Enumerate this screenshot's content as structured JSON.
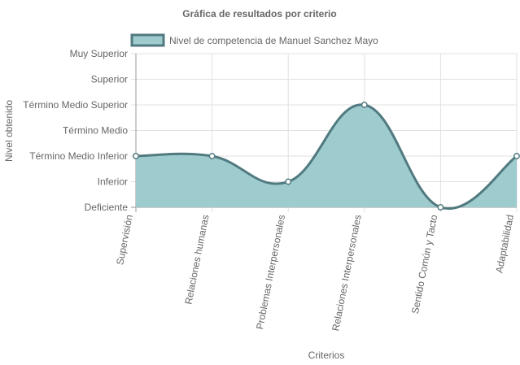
{
  "chart_data": {
    "type": "area",
    "title": "Gráfica de resultados por criterio",
    "xlabel": "Criterios",
    "ylabel": "Nivel obtenido",
    "categories": [
      "Supervisión",
      "Relaciones humanas",
      "Problemas Interpersonales",
      "Relaciones Interpersonales",
      "Sentido Común y Tacto",
      "Adaptabilidad"
    ],
    "y_levels": [
      "Deficiente",
      "Inferior",
      "Término Medio Inferior",
      "Término Medio",
      "Término Medio Superior",
      "Superior",
      "Muy Superior"
    ],
    "series": [
      {
        "name": "Nivel de competencia de Manuel Sanchez Mayo",
        "values": [
          2,
          2,
          1,
          4,
          0,
          2
        ]
      }
    ],
    "ylim": [
      0,
      6
    ],
    "grid": true,
    "legend_position": "top",
    "colors": {
      "fill": "#9ecbcd",
      "line": "#517a80",
      "point_fill": "#ffffff",
      "point_stroke": "#517a80",
      "grid": "#e0e0e0",
      "axis_line": "#9a9a9a",
      "text": "#666666"
    }
  }
}
